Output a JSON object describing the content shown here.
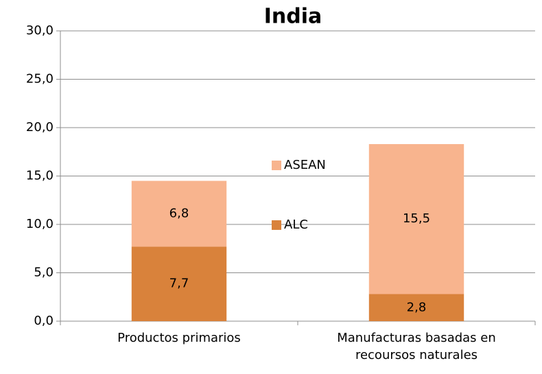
{
  "chart_data": {
    "type": "stacked_bar",
    "title": "India",
    "categories": [
      "Productos primarios",
      "Manufacturas basadas en recoursos naturales"
    ],
    "series": [
      {
        "name": "ALC",
        "color": "#d9823b",
        "values": [
          7.7,
          2.8
        ],
        "value_labels": [
          "7,7",
          "2,8"
        ]
      },
      {
        "name": "ASEAN",
        "color": "#f8b48e",
        "values": [
          6.8,
          15.5
        ],
        "value_labels": [
          "6,8",
          "15,5"
        ]
      }
    ],
    "ylim": [
      0,
      30
    ],
    "yticks": [
      {
        "value": 0,
        "label": "0,0"
      },
      {
        "value": 5,
        "label": "5,0"
      },
      {
        "value": 10,
        "label": "10,0"
      },
      {
        "value": 15,
        "label": "15,0"
      },
      {
        "value": 20,
        "label": "20,0"
      },
      {
        "value": 25,
        "label": "25,0"
      },
      {
        "value": 30,
        "label": "30,0"
      }
    ],
    "grid": true
  }
}
